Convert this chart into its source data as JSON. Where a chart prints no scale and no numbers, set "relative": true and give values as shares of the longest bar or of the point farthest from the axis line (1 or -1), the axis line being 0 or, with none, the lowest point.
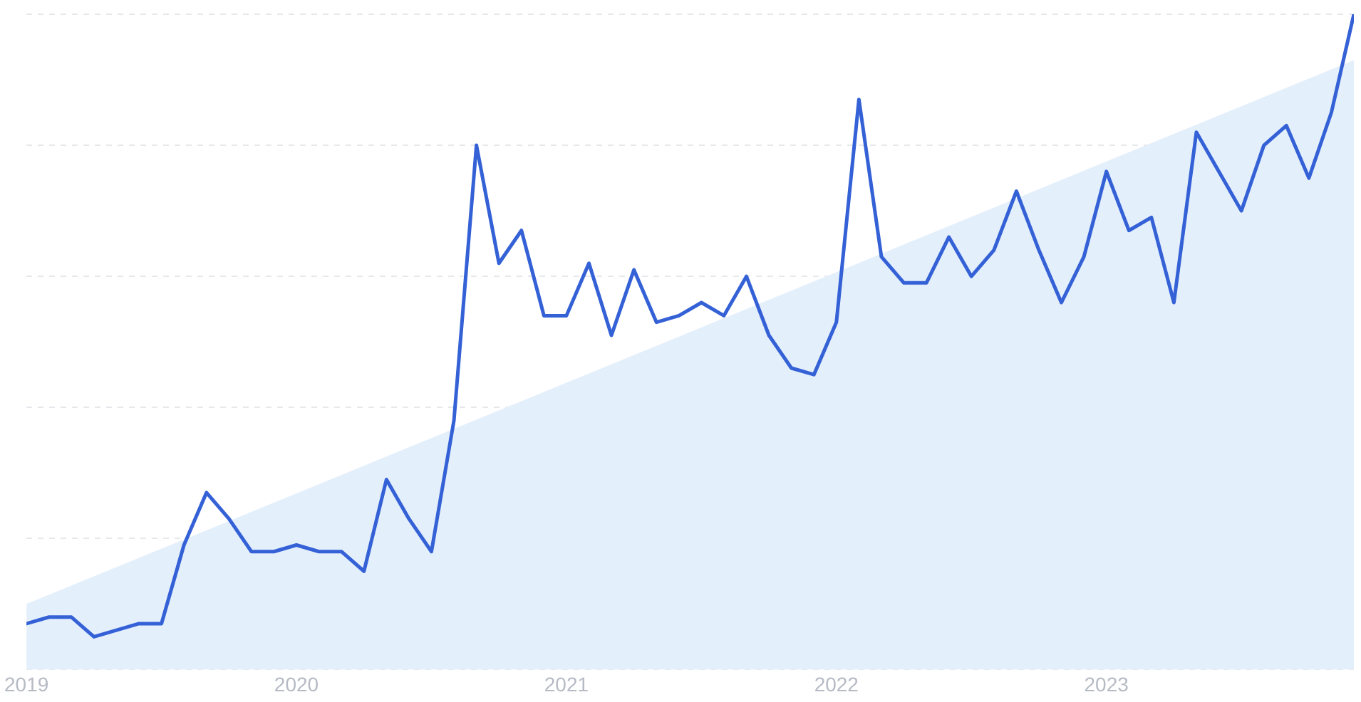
{
  "chart_data": {
    "type": "line",
    "relative": true,
    "grid": "y",
    "marker": "none",
    "line_style": "solid",
    "legend": false,
    "x": [
      "2019-01",
      "2019-02",
      "2019-03",
      "2019-04",
      "2019-05",
      "2019-06",
      "2019-07",
      "2019-08",
      "2019-09",
      "2019-10",
      "2019-11",
      "2019-12",
      "2020-01",
      "2020-02",
      "2020-03",
      "2020-04",
      "2020-05",
      "2020-06",
      "2020-07",
      "2020-08",
      "2020-09",
      "2020-10",
      "2020-11",
      "2020-12",
      "2021-01",
      "2021-02",
      "2021-03",
      "2021-04",
      "2021-05",
      "2021-06",
      "2021-07",
      "2021-08",
      "2021-09",
      "2021-10",
      "2021-11",
      "2021-12",
      "2022-01",
      "2022-02",
      "2022-03",
      "2022-04",
      "2022-05",
      "2022-06",
      "2022-07",
      "2022-08",
      "2022-09",
      "2022-10",
      "2022-11",
      "2022-12",
      "2023-01",
      "2023-02",
      "2023-03",
      "2023-04",
      "2023-05",
      "2023-06",
      "2023-07",
      "2023-08",
      "2023-09",
      "2023-10",
      "2023-11",
      "2023-12"
    ],
    "xlim": [
      "2019-01",
      "2023-12"
    ],
    "xticks": [
      "2019",
      "2020",
      "2021",
      "2022",
      "2023"
    ],
    "series": [
      {
        "type": "area",
        "color": "#e4effc",
        "x": [
          "2019-01",
          "2023-12"
        ],
        "values": [
          0.1,
          0.93
        ]
      },
      {
        "color": "#3461d6",
        "values": [
          0.07,
          0.08,
          0.08,
          0.05,
          0.06,
          0.07,
          0.07,
          0.19,
          0.27,
          0.23,
          0.18,
          0.18,
          0.19,
          0.18,
          0.18,
          0.15,
          0.29,
          0.23,
          0.18,
          0.38,
          0.8,
          0.62,
          0.67,
          0.54,
          0.54,
          0.62,
          0.51,
          0.61,
          0.53,
          0.54,
          0.56,
          0.54,
          0.6,
          0.51,
          0.46,
          0.45,
          0.53,
          0.87,
          0.63,
          0.59,
          0.59,
          0.66,
          0.6,
          0.64,
          0.73,
          0.64,
          0.56,
          0.63,
          0.76,
          0.67,
          0.69,
          0.56,
          0.82,
          0.76,
          0.7,
          0.8,
          0.83,
          0.75,
          0.85,
          1
        ]
      }
    ]
  }
}
